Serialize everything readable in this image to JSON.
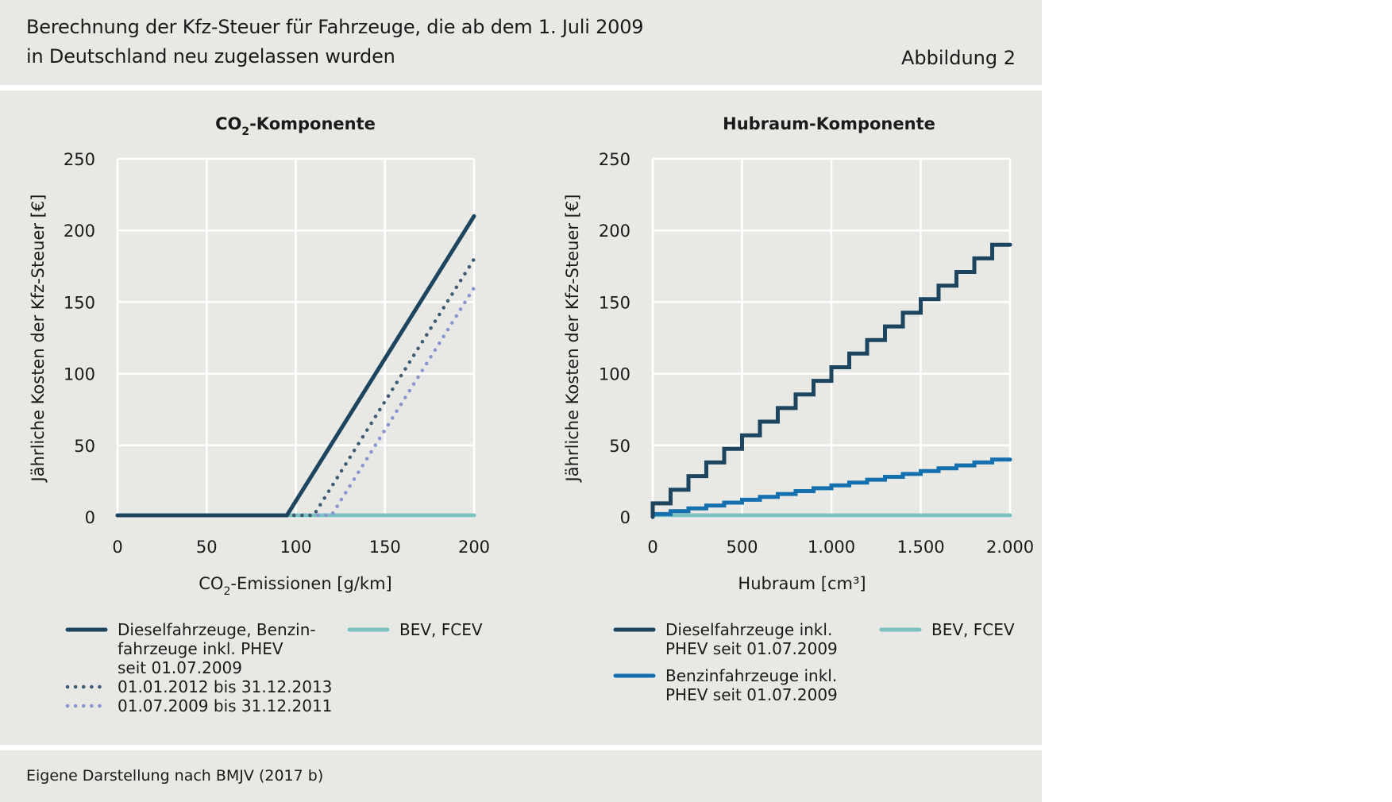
{
  "header": {
    "title_line1": "Berechnung der Kfz-Steuer für Fahrzeuge, die ab dem 1. Juli 2009",
    "title_line2": "in Deutschland neu zugelassen wurden",
    "figure_label": "Abbildung 2"
  },
  "footer": {
    "source": "Eigene Darstellung nach BMJV (2017 b)"
  },
  "colors": {
    "dark": "#1d4560",
    "blue": "#1470ae",
    "teal": "#7dc2c3",
    "dot_dark": "#3d5b72",
    "dot_light": "#8a95cf",
    "grid": "#ffffff",
    "panel": "#e8e8e4"
  },
  "chart_data": [
    {
      "type": "line",
      "title_main": "CO",
      "title_sub": "2",
      "title_rest": "-Komponente",
      "xlabel_main": "CO",
      "xlabel_sub": "2",
      "xlabel_rest": "-Emissionen [g/km]",
      "ylabel": "Jährliche Kosten der Kfz-Steuer [€]",
      "xlim": [
        0,
        200
      ],
      "ylim": [
        0,
        250
      ],
      "xticks": [
        0,
        50,
        100,
        150,
        200
      ],
      "xtick_labels": [
        "0",
        "50",
        "100",
        "150",
        "200"
      ],
      "yticks": [
        0,
        50,
        100,
        150,
        200,
        250
      ],
      "ytick_labels": [
        "0",
        "50",
        "100",
        "150",
        "200",
        "250"
      ],
      "grid": true,
      "series": [
        {
          "name": "BEV, FCEV",
          "style": "solid-teal",
          "x": [
            0,
            200
          ],
          "y": [
            0,
            0
          ]
        },
        {
          "name": "01.07.2009 bis 31.12.2011",
          "style": "dotted-light",
          "x": [
            0,
            120,
            200
          ],
          "y": [
            0,
            0,
            160
          ]
        },
        {
          "name": "01.01.2012 bis 31.12.2013",
          "style": "dotted-dark",
          "x": [
            0,
            110,
            200
          ],
          "y": [
            0,
            0,
            180
          ]
        },
        {
          "name": "Dieselfahrzeuge, Benzinfahrzeuge inkl. PHEV seit 01.07.2009",
          "style": "solid-dark",
          "x": [
            0,
            95,
            200
          ],
          "y": [
            0,
            0,
            210
          ]
        }
      ],
      "legend": [
        {
          "lines": [
            "Dieselfahrzeuge, Benzin-",
            "fahrzeuge inkl. PHEV",
            "seit 01.07.2009"
          ],
          "style": "solid-dark"
        },
        {
          "lines": [
            "01.01.2012 bis 31.12.2013"
          ],
          "style": "dotted-dark"
        },
        {
          "lines": [
            "01.07.2009 bis 31.12.2011"
          ],
          "style": "dotted-light"
        },
        {
          "lines": [
            "BEV, FCEV"
          ],
          "style": "solid-teal"
        }
      ]
    },
    {
      "type": "line",
      "title_main": "Hubraum-Komponente",
      "xlabel_main": "Hubraum [cm³]",
      "ylabel": "Jährliche Kosten der Kfz-Steuer [€]",
      "xlim": [
        0,
        2000
      ],
      "ylim": [
        0,
        250
      ],
      "xticks": [
        0,
        500,
        1000,
        1500,
        2000
      ],
      "xtick_labels": [
        "0",
        "500",
        "1.000",
        "1.500",
        "2.000"
      ],
      "yticks": [
        0,
        50,
        100,
        150,
        200,
        250
      ],
      "ytick_labels": [
        "0",
        "50",
        "100",
        "150",
        "200",
        "250"
      ],
      "grid": true,
      "series": [
        {
          "name": "BEV, FCEV",
          "style": "solid-teal",
          "x": [
            0,
            2000
          ],
          "y": [
            0,
            0
          ]
        },
        {
          "name": "Benzinfahrzeuge inkl. PHEV seit 01.07.2009",
          "style": "step-blue",
          "step_width": 100,
          "step_value": 2,
          "max_x": 2000
        },
        {
          "name": "Dieselfahrzeuge inkl. PHEV seit 01.07.2009",
          "style": "step-dark",
          "step_width": 100,
          "step_value": 9.5,
          "max_x": 2000
        }
      ],
      "legend": [
        {
          "lines": [
            "Dieselfahrzeuge inkl.",
            "PHEV seit 01.07.2009"
          ],
          "style": "solid-dark"
        },
        {
          "lines": [
            "Benzinfahrzeuge inkl.",
            "PHEV seit 01.07.2009"
          ],
          "style": "solid-blue"
        },
        {
          "lines": [
            "BEV, FCEV"
          ],
          "style": "solid-teal"
        }
      ]
    }
  ]
}
